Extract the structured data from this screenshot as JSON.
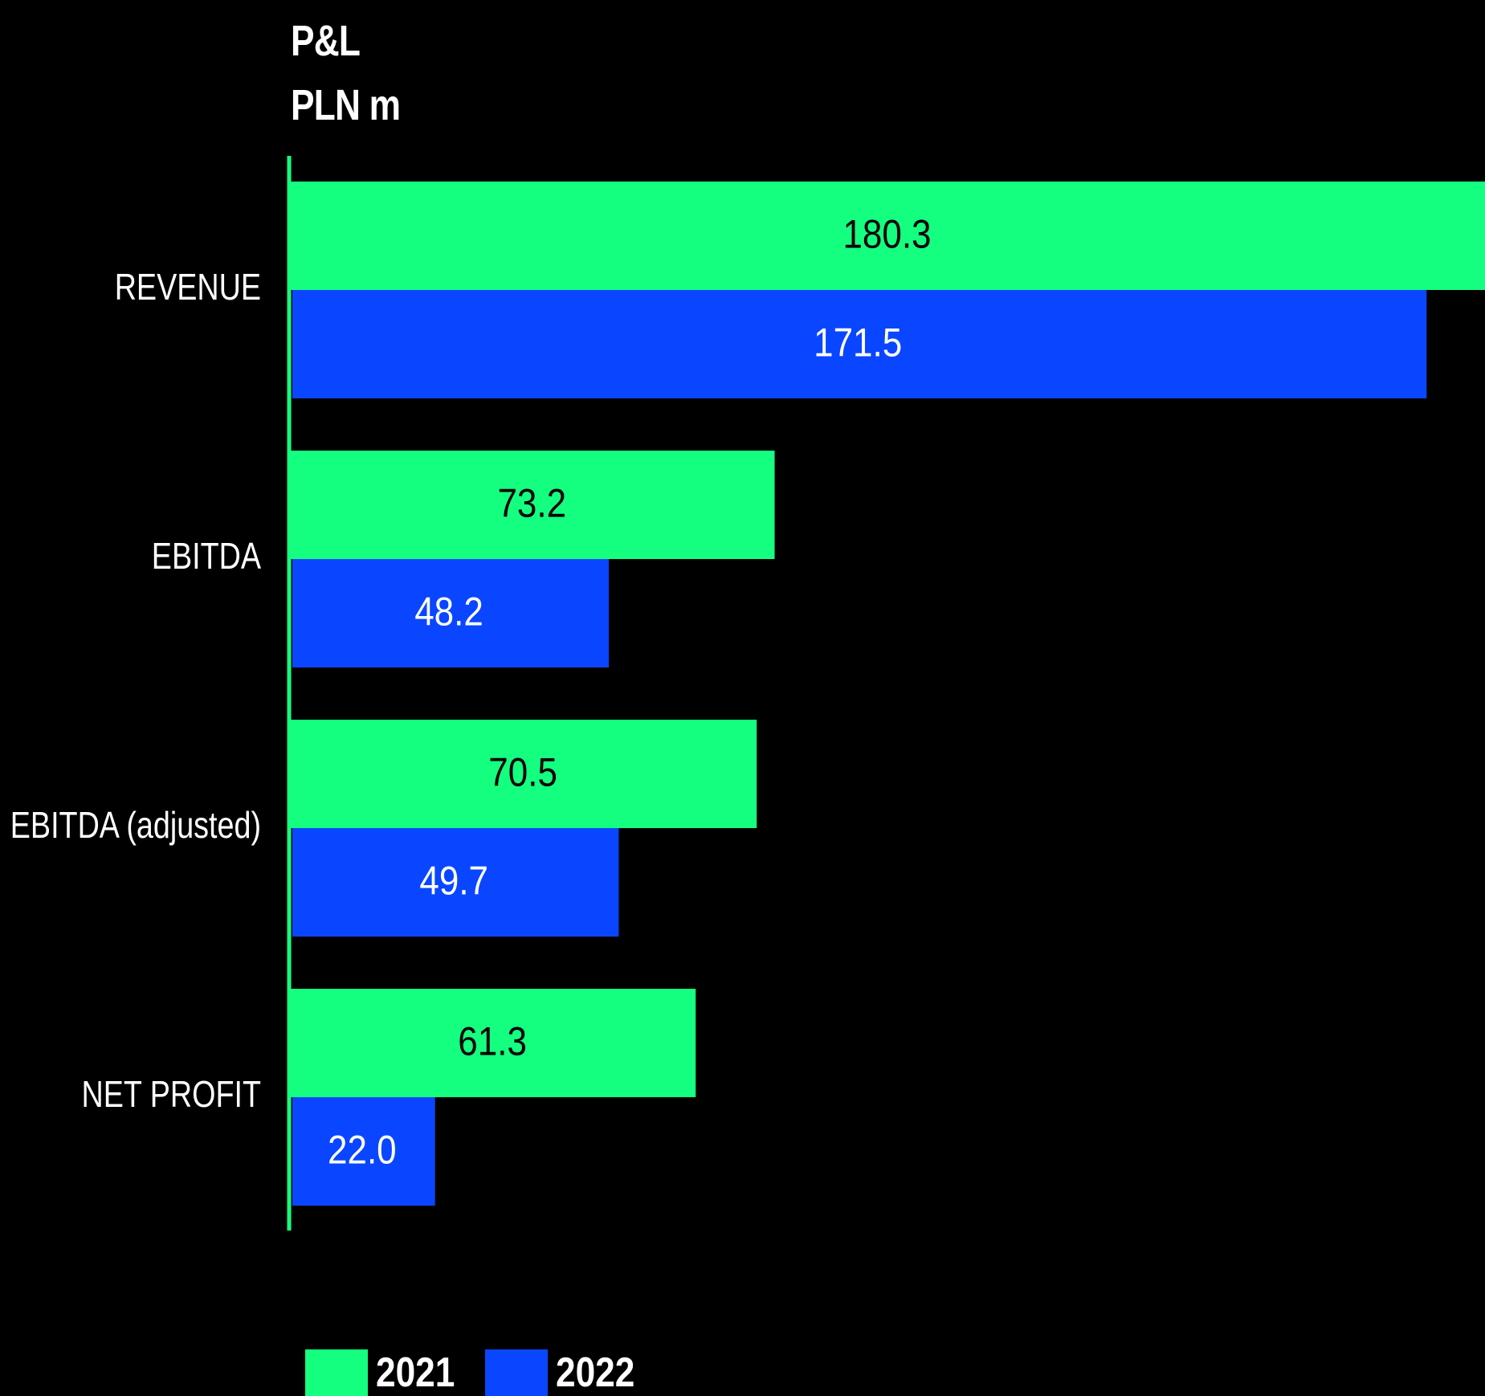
{
  "chart_data": {
    "type": "bar",
    "orientation": "horizontal",
    "title_lines": [
      "P&L",
      "PLN m"
    ],
    "categories": [
      "REVENUE",
      "EBITDA",
      "EBITDA (adjusted)",
      "NET PROFIT"
    ],
    "series": [
      {
        "name": "2021",
        "color": "#14ff80",
        "label_color": "#000000",
        "values": [
          180.3,
          73.2,
          70.5,
          61.3
        ]
      },
      {
        "name": "2022",
        "color": "#0a46ff",
        "label_color": "#ffffff",
        "values": [
          171.5,
          48.2,
          49.7,
          22.0
        ]
      }
    ],
    "value_labels": [
      [
        "180.3",
        "73.2",
        "70.5",
        "61.3"
      ],
      [
        "171.5",
        "48.2",
        "49.7",
        "22.0"
      ]
    ],
    "axis_color": "#14ff80",
    "xlim": [
      0,
      180.3
    ],
    "legend_position": "bottom-left",
    "grid": false
  }
}
